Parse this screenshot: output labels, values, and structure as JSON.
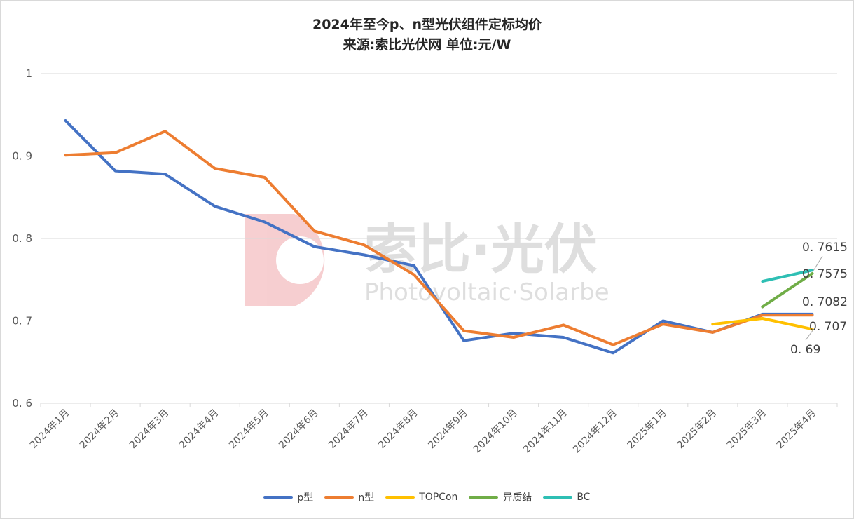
{
  "title": "2024年至今p、n型光伏组件定标均价",
  "subtitle": "来源:索比光伏网 单位:元/W",
  "watermark": {
    "brand": "索比·光伏",
    "brand_en": "Photovoltaic·Solarbe"
  },
  "chart_data": {
    "type": "line",
    "title": "2024年至今p、n型光伏组件定标均价",
    "subtitle": "来源:索比光伏网 单位:元/W",
    "categories": [
      "2024年1月",
      "2024年2月",
      "2024年3月",
      "2024年4月",
      "2024年5月",
      "2024年6月",
      "2024年7月",
      "2024年8月",
      "2024年9月",
      "2024年10月",
      "2024年11月",
      "2024年12月",
      "2025年1月",
      "2025年2月",
      "2025年3月",
      "2025年4月"
    ],
    "y_ticks": [
      "0. 6",
      "0. 7",
      "0. 8",
      "0. 9",
      "1"
    ],
    "ylim": [
      0.6,
      1.0
    ],
    "grid": true,
    "legend_position": "bottom",
    "series": [
      {
        "name": "p型",
        "color": "#4472C4",
        "values": [
          0.943,
          0.882,
          0.878,
          0.839,
          0.82,
          0.79,
          0.78,
          0.767,
          0.676,
          0.685,
          0.68,
          0.661,
          0.7,
          0.686,
          0.7082,
          0.7082
        ]
      },
      {
        "name": "n型",
        "color": "#ED7D31",
        "values": [
          0.901,
          0.904,
          0.93,
          0.885,
          0.874,
          0.809,
          0.792,
          0.756,
          0.688,
          0.68,
          0.695,
          0.671,
          0.696,
          0.686,
          0.707,
          0.707
        ]
      },
      {
        "name": "TOPCon",
        "color": "#FFC000",
        "values": [
          null,
          null,
          null,
          null,
          null,
          null,
          null,
          null,
          null,
          null,
          null,
          null,
          null,
          0.696,
          0.703,
          0.69
        ]
      },
      {
        "name": "异质结",
        "color": "#70AD47",
        "values": [
          null,
          null,
          null,
          null,
          null,
          null,
          null,
          null,
          null,
          null,
          null,
          null,
          null,
          null,
          0.717,
          0.7575
        ]
      },
      {
        "name": "BC",
        "color": "#2EBFB4",
        "values": [
          null,
          null,
          null,
          null,
          null,
          null,
          null,
          null,
          null,
          null,
          null,
          null,
          null,
          null,
          0.748,
          0.7615
        ]
      }
    ],
    "data_labels": [
      {
        "text": "0. 7615",
        "series": "BC",
        "value": 0.7615
      },
      {
        "text": "0. 7575",
        "series": "异质结",
        "value": 0.7575
      },
      {
        "text": "0. 7082",
        "series": "p型",
        "value": 0.7082
      },
      {
        "text": "0. 707",
        "series": "n型",
        "value": 0.707
      },
      {
        "text": "0. 69",
        "series": "TOPCon",
        "value": 0.69
      }
    ]
  }
}
